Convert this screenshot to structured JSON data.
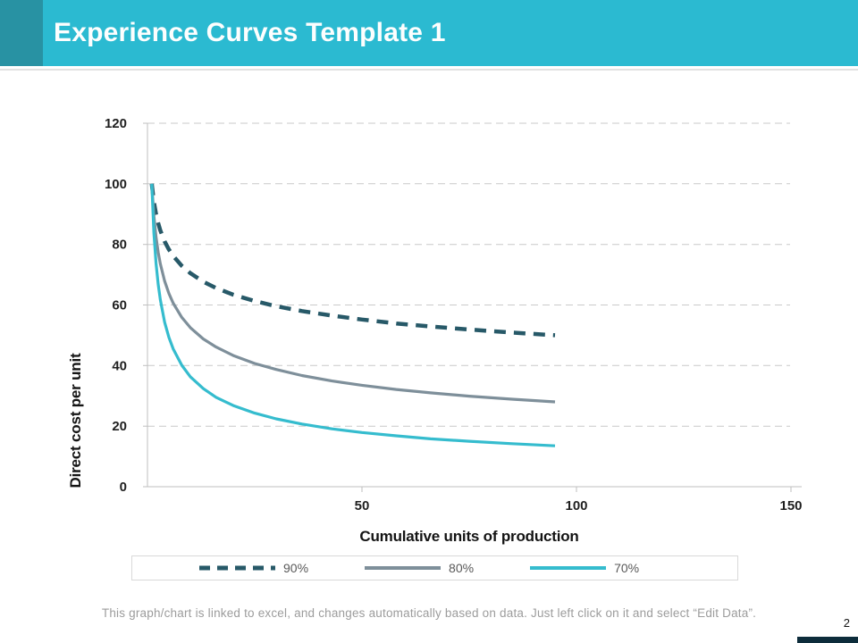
{
  "header": {
    "title": "Experience Curves Template 1",
    "bar_color": "#2bbad1",
    "accent_color": "#2892a3"
  },
  "footer": {
    "note": "This graph/chart is linked to excel, and changes automatically based on data. Just left click on it and select “Edit Data”.",
    "page_number": "2",
    "page_bar_color": "#0d2c3b"
  },
  "chart_data": {
    "type": "line",
    "title": "",
    "xlabel": "Cumulative units of production",
    "ylabel": "Direct cost per unit",
    "xlim": [
      0,
      150
    ],
    "ylim": [
      0,
      120
    ],
    "x_ticks": [
      50,
      100,
      150
    ],
    "y_ticks": [
      0,
      20,
      40,
      60,
      80,
      100,
      120
    ],
    "grid": "horizontal-dashed",
    "legend_position": "bottom",
    "style": {
      "grid_color": "#c9c9c9",
      "axis_color": "#bfbfbf",
      "tick_color": "#1f1f1f"
    },
    "x": [
      1,
      1.5,
      2,
      2.5,
      3,
      4,
      5,
      6,
      8,
      10,
      13,
      16,
      20,
      25,
      30,
      36,
      43,
      50,
      58,
      66,
      75,
      85,
      95
    ],
    "series": [
      {
        "name": "90%",
        "color": "#275968",
        "dash": true,
        "values": [
          100,
          94.0,
          90.0,
          87.0,
          84.6,
          81.0,
          78.3,
          76.2,
          72.9,
          70.5,
          67.7,
          65.6,
          63.4,
          61.3,
          59.6,
          58.0,
          56.5,
          55.2,
          53.9,
          52.9,
          51.9,
          50.9,
          50.0
        ]
      },
      {
        "name": "80%",
        "color": "#7e8f9a",
        "dash": false,
        "values": [
          100,
          89.3,
          82.4,
          77.4,
          73.6,
          67.9,
          63.8,
          60.6,
          55.9,
          52.5,
          48.8,
          46.1,
          43.3,
          40.7,
          38.7,
          36.7,
          34.9,
          33.5,
          32.1,
          31.0,
          29.9,
          28.9,
          28.0
        ]
      },
      {
        "name": "70%",
        "color": "#35bcce",
        "dash": false,
        "values": [
          100,
          83.7,
          73.7,
          66.8,
          61.7,
          54.3,
          49.3,
          45.5,
          40.1,
          36.3,
          32.4,
          29.5,
          26.8,
          24.3,
          22.4,
          20.7,
          19.1,
          17.9,
          16.8,
          15.8,
          15.0,
          14.2,
          13.5
        ]
      }
    ]
  }
}
